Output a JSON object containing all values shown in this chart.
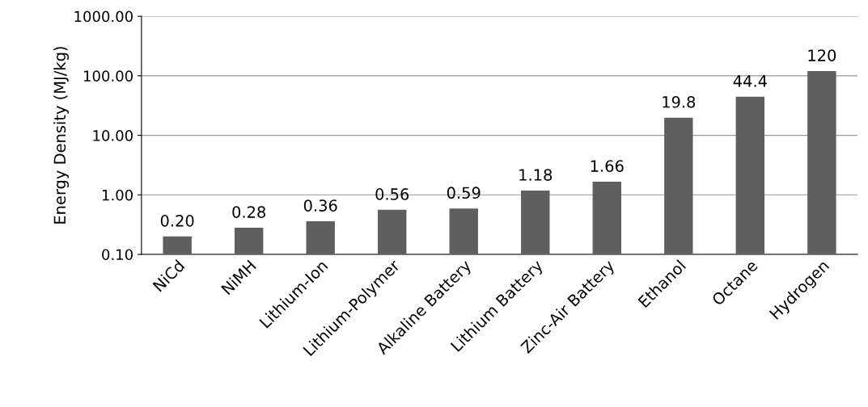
{
  "chart_data": {
    "type": "bar",
    "ylabel": "Energy Density (MJ/kg)",
    "categories": [
      "NiCd",
      "NiMH",
      "Lithium-Ion",
      "Lithium-Polymer",
      "Alkaline Battery",
      "Lithium Battery",
      "Zinc-Air Battery",
      "Ethanol",
      "Octane",
      "Hydrogen"
    ],
    "values": [
      0.2,
      0.28,
      0.36,
      0.56,
      0.59,
      1.18,
      1.66,
      19.8,
      44.4,
      120
    ],
    "value_labels": [
      "0.20",
      "0.28",
      "0.36",
      "0.56",
      "0.59",
      "1.18",
      "1.66",
      "19.8",
      "44.4",
      "120"
    ],
    "color": "#5f5f5f",
    "log": true,
    "ylim": [
      0.1,
      1000
    ],
    "yticks": [
      {
        "value": 0.1,
        "label": "0.10"
      },
      {
        "value": 1,
        "label": "1.00"
      },
      {
        "value": 10,
        "label": "10.00"
      },
      {
        "value": 100,
        "label": "100.00"
      },
      {
        "value": 1000,
        "label": "1000.00"
      }
    ],
    "grid": "y",
    "legend": false
  }
}
